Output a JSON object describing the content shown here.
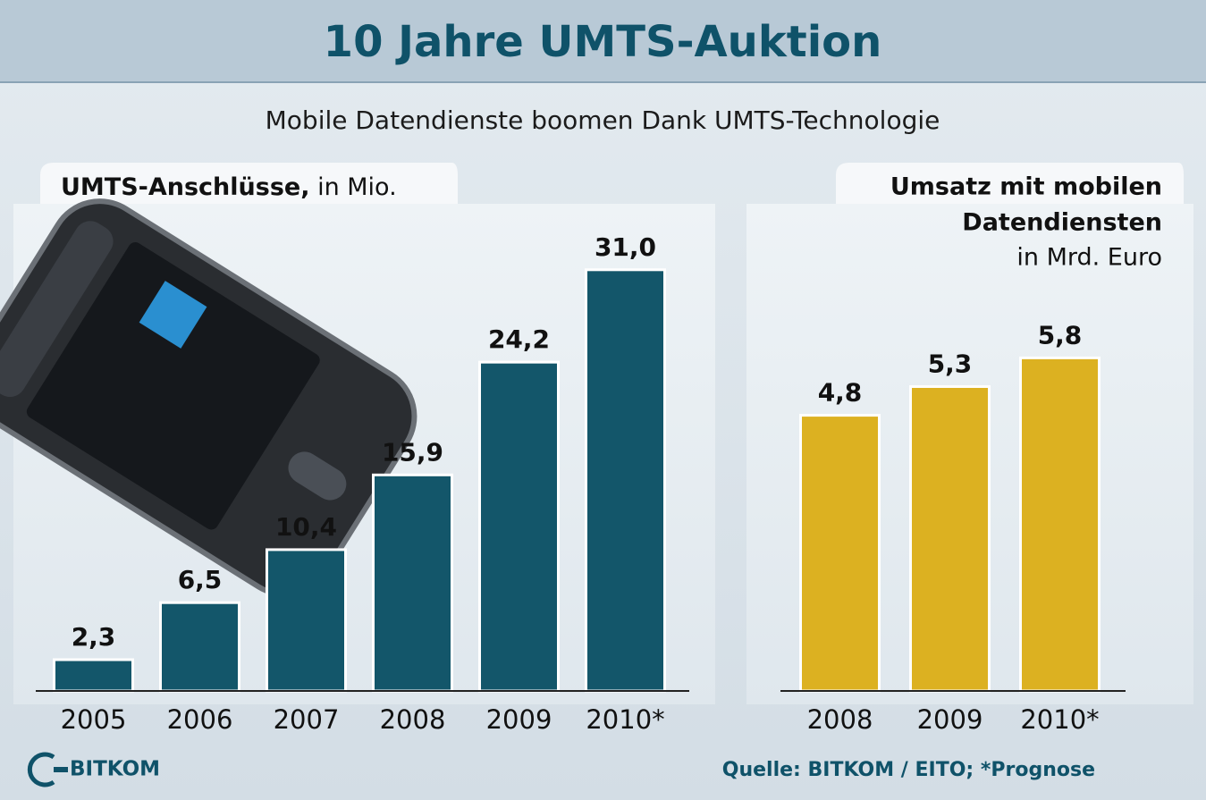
{
  "title": "10 Jahre UMTS-Auktion",
  "subtitle": "Mobile Datendienste boomen Dank UMTS-Technologie",
  "logo": "BITKOM",
  "source": "Quelle: BITKOM / EITO; *Prognose",
  "chart_data": [
    {
      "type": "bar",
      "title": "UMTS-Anschlüsse,",
      "unit": "in Mio.",
      "categories": [
        "2005",
        "2006",
        "2007",
        "2008",
        "2009",
        "2010*"
      ],
      "values": [
        2.3,
        6.5,
        10.4,
        15.9,
        24.2,
        31.0
      ],
      "value_labels": [
        "2,3",
        "6,5",
        "10,4",
        "15,9",
        "24,2",
        "31,0"
      ],
      "color": "#13566a",
      "ylim": [
        0,
        35
      ]
    },
    {
      "type": "bar",
      "title": [
        "Umsatz mit mobilen",
        "Datendiensten"
      ],
      "unit": "in Mrd. Euro",
      "categories": [
        "2008",
        "2009",
        "2010*"
      ],
      "values": [
        4.8,
        5.3,
        5.8
      ],
      "value_labels": [
        "4,8",
        "5,3",
        "5,8"
      ],
      "color": "#dcb121",
      "ylim": [
        0,
        8
      ]
    }
  ]
}
